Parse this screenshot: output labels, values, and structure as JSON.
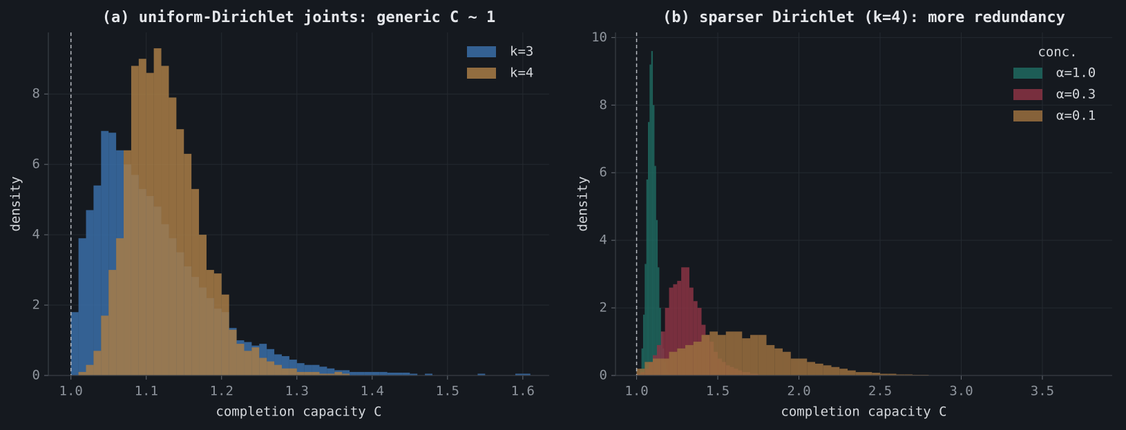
{
  "chart_data": [
    {
      "type": "histogram",
      "title": "(a) uniform-Dirichlet joints: generic C ~ 1",
      "xlabel": "completion capacity  C",
      "ylabel": "density",
      "xlim": [
        0.97,
        1.635
      ],
      "ylim": [
        0,
        9.75
      ],
      "xticks": [
        {
          "value": 1,
          "label": "1.0"
        },
        1.1,
        1.2,
        1.3,
        1.4,
        1.5,
        1.6
      ],
      "yticks": [
        0,
        2,
        4,
        6,
        8
      ],
      "grid": true,
      "vline": 1,
      "legend": "upper right",
      "bins": [
        1,
        1.01,
        1.02,
        1.03,
        1.04,
        1.05,
        1.06,
        1.07,
        1.08,
        1.09,
        1.1,
        1.11,
        1.12,
        1.13,
        1.14,
        1.15,
        1.16,
        1.17,
        1.18,
        1.19,
        1.2,
        1.21,
        1.22,
        1.23,
        1.24,
        1.25,
        1.26,
        1.27,
        1.28,
        1.29,
        1.3,
        1.31,
        1.32,
        1.33,
        1.34,
        1.35,
        1.36,
        1.37,
        1.38,
        1.39,
        1.4,
        1.41,
        1.42,
        1.43,
        1.44,
        1.45,
        1.46,
        1.47,
        1.48,
        1.49,
        1.5,
        1.51,
        1.52,
        1.53,
        1.54,
        1.55,
        1.56,
        1.57,
        1.58,
        1.59,
        1.6,
        1.61
      ],
      "series": [
        {
          "name": "k=3",
          "color": "#3a6ea8",
          "values": [
            1.8,
            3.9,
            4.7,
            5.4,
            6.95,
            6.9,
            6.4,
            6.0,
            5.7,
            5.3,
            5.1,
            4.8,
            4.3,
            3.9,
            3.5,
            3.1,
            2.8,
            2.5,
            2.2,
            1.9,
            1.8,
            1.35,
            1.0,
            0.95,
            0.85,
            0.9,
            0.75,
            0.6,
            0.55,
            0.45,
            0.35,
            0.3,
            0.3,
            0.25,
            0.2,
            0.15,
            0.15,
            0.1,
            0.1,
            0.1,
            0.1,
            0.1,
            0.08,
            0.08,
            0.08,
            0.05,
            0,
            0.05,
            0,
            0,
            0,
            0,
            0,
            0,
            0.05,
            0,
            0,
            0,
            0,
            0.05,
            0.05
          ]
        },
        {
          "name": "k=4",
          "color": "#a87c46",
          "values": [
            0,
            0.1,
            0.3,
            0.7,
            1.7,
            3.0,
            3.9,
            6.4,
            8.8,
            9.0,
            8.6,
            9.3,
            8.8,
            7.9,
            7.0,
            6.3,
            5.3,
            4.0,
            3.0,
            2.9,
            2.3,
            1.3,
            0.9,
            0.7,
            0.8,
            0.5,
            0.4,
            0.3,
            0.2,
            0.2,
            0.1,
            0.1,
            0.1,
            0.05,
            0.05,
            0.1,
            0.05,
            0,
            0,
            0,
            0,
            0,
            0,
            0,
            0,
            0,
            0,
            0,
            0,
            0,
            0,
            0,
            0,
            0,
            0,
            0,
            0,
            0,
            0,
            0,
            0
          ]
        }
      ]
    },
    {
      "type": "histogram",
      "title": "(b) sparser Dirichlet (k=4): more redundancy",
      "xlabel": "completion capacity  C",
      "ylabel": "density",
      "xlim": [
        0.87,
        3.93
      ],
      "ylim": [
        0,
        10.15
      ],
      "xticks": [
        {
          "value": 1,
          "label": "1.0"
        },
        1.5,
        {
          "value": 2,
          "label": "2.0"
        },
        2.5,
        {
          "value": 3,
          "label": "3.0"
        },
        3.5
      ],
      "yticks": [
        0,
        2,
        4,
        6,
        8,
        10
      ],
      "grid": true,
      "vline": 1,
      "legend": "upper right",
      "legend_title": "conc.",
      "series": [
        {
          "name": "α=1.0",
          "color": "#1f6a60",
          "bins": [
            1.02,
            1.03,
            1.04,
            1.05,
            1.06,
            1.07,
            1.08,
            1.09,
            1.1,
            1.11,
            1.12,
            1.13,
            1.14,
            1.15,
            1.16,
            1.17,
            1.18,
            1.19,
            1.2,
            1.21
          ],
          "values": [
            0.2,
            0.8,
            1.8,
            3.3,
            5.8,
            7.5,
            9.2,
            9.6,
            8.0,
            6.2,
            4.6,
            3.2,
            2.0,
            1.3,
            0.8,
            0.4,
            0.2,
            0.1,
            0.05
          ]
        },
        {
          "name": "α=0.3",
          "color": "#8a3444",
          "bins": [
            1,
            1.025,
            1.05,
            1.075,
            1.1,
            1.125,
            1.15,
            1.175,
            1.2,
            1.225,
            1.25,
            1.275,
            1.3,
            1.325,
            1.35,
            1.375,
            1.4,
            1.425,
            1.45,
            1.475,
            1.5,
            1.525,
            1.55,
            1.575,
            1.6,
            1.625,
            1.65,
            1.675,
            1.7,
            1.725,
            1.75
          ],
          "values": [
            0.05,
            0.1,
            0.2,
            0.4,
            0.6,
            0.9,
            1.3,
            2.0,
            2.6,
            2.7,
            2.8,
            3.2,
            3.2,
            2.6,
            2.2,
            2.0,
            1.5,
            1.2,
            1.0,
            0.7,
            0.5,
            0.4,
            0.3,
            0.25,
            0.2,
            0.15,
            0.1,
            0.1,
            0.05,
            0.05
          ]
        },
        {
          "name": "α=0.1",
          "color": "#9a7040",
          "bins": [
            1,
            1.05,
            1.1,
            1.15,
            1.2,
            1.25,
            1.3,
            1.35,
            1.4,
            1.45,
            1.5,
            1.55,
            1.6,
            1.65,
            1.7,
            1.75,
            1.8,
            1.85,
            1.9,
            1.95,
            2,
            2.05,
            2.1,
            2.15,
            2.2,
            2.25,
            2.3,
            2.35,
            2.4,
            2.45,
            2.5,
            2.55,
            2.6,
            2.65,
            2.7,
            2.75,
            2.8,
            2.85
          ],
          "values": [
            0.2,
            0.4,
            0.5,
            0.5,
            0.7,
            0.8,
            0.9,
            1.0,
            1.2,
            1.3,
            1.2,
            1.3,
            1.3,
            1.1,
            1.2,
            1.2,
            0.9,
            0.8,
            0.7,
            0.5,
            0.5,
            0.4,
            0.35,
            0.3,
            0.25,
            0.2,
            0.15,
            0.1,
            0.1,
            0.08,
            0.05,
            0.05,
            0.03,
            0.03,
            0.02,
            0.02,
            0.01
          ]
        }
      ]
    }
  ]
}
